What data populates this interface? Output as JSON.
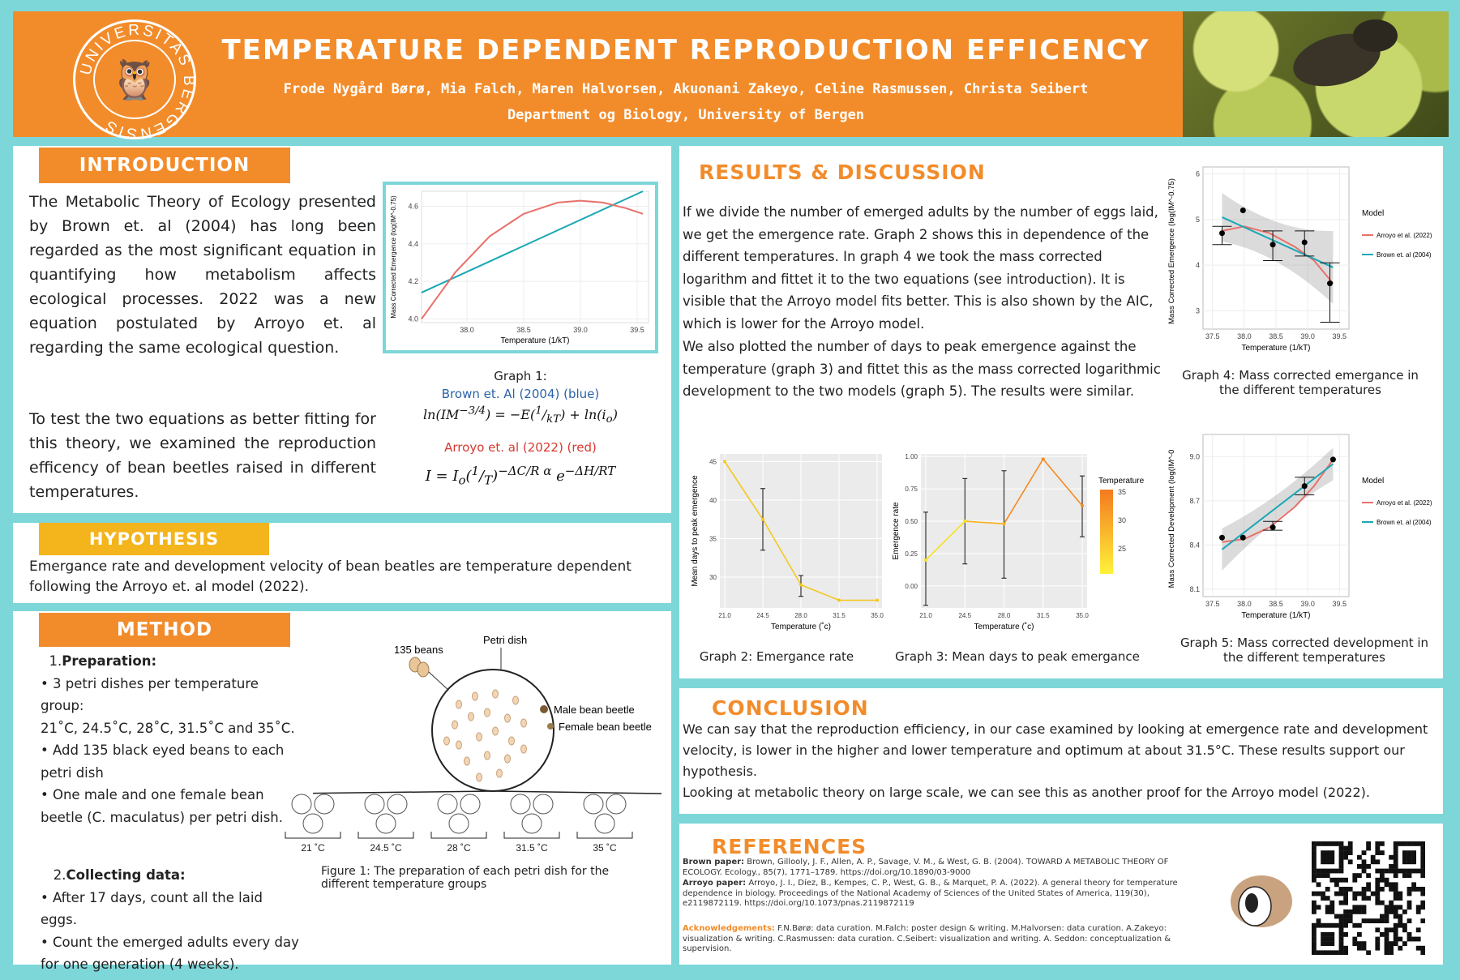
{
  "header": {
    "title": "TEMPERATURE DEPENDENT REPRODUCTION EFFICENCY",
    "authors": "Frode Nygård Børø, Mia Falch, Maren Halvorsen, Akuonani Zakeyo, Celine Rasmussen, Christa Seibert",
    "department": "Department og Biology, University of Bergen",
    "seal_text": "UNIVERSITAS BERGENSIS"
  },
  "introduction": {
    "label": "INTRODUCTION",
    "p1": "The Metabolic Theory of Ecology presented by Brown et. al (2004) has long been regarded as the most significant equation in quantifying how metabolism affects ecological processes. 2022 was a new equation postulated by Arroyo et. al regarding the same ecological question.",
    "p2": "To test the two equations as better fitting for this theory, we examined the reproduction efficency of bean beetles raised in different temperatures.",
    "graph1_caption": "Graph 1:",
    "brown_label": "Brown et. Al (2004) (blue)",
    "brown_eq": "ln(IM^-3/4) = -E(1/kT) + ln(i_o)",
    "arroyo_label": "Arroyo et. al (2022) (red)",
    "arroyo_eq": "I = I_o(1/T)^(-ΔC/R α) e^(-ΔH/RT)"
  },
  "hypothesis": {
    "label": "HYPOTHESIS",
    "text": "Emergance rate and development velocity of bean beatles are temperature dependent following the Arroyo et. al model (2022)."
  },
  "method": {
    "label": "METHOD",
    "step1_num": "1.",
    "step1_title": "Preparation:",
    "step1_items": [
      "• 3 petri dishes per temperature group:",
      "21˚C, 24.5˚C, 28˚C, 31.5˚C and 35˚C.",
      "• Add 135 black eyed beans to each petri dish",
      "• One male and one female bean beetle (C. maculatus) per petri dish."
    ],
    "step2_num": "2.",
    "step2_title": "Collecting data:",
    "step2_items": [
      "• After 17 days, count all the laid eggs.",
      "• Count the emerged adults every day for one generation (4 weeks)."
    ],
    "fig_beans": "135 beans",
    "fig_petri": "Petri dish",
    "fig_male": "Male bean beetle",
    "fig_female": "Female bean beetle",
    "fig_temps": [
      "21 ˚C",
      "24.5 ˚C",
      "28 ˚C",
      "31.5 ˚C",
      "35 ˚C"
    ],
    "fig_caption": "Figure 1: The preparation of each petri dish for the different temperature groups"
  },
  "results": {
    "label": "RESULTS & DISCUSSION",
    "text1": "If we divide the number of emerged adults by the number of eggs laid, we get the emergence rate. Graph 2 shows this in dependence of the different temperatures. In graph 4 we took the mass corrected logarithm and fittet it to the two equations (see introduction). It is visible that the Arroyo model fits better. This is also shown by the AIC, which is lower for the Arroyo model.",
    "text2": "We also plotted the number of days to peak emergence against the temperature (graph 3) and fittet this as the mass corrected logarithmic development to the two models (graph 5). The results were similar.",
    "graph2_caption": "Graph 2: Emergance rate",
    "graph3_caption": "Graph 3: Mean days to peak emergance",
    "graph4_caption": "Graph 4: Mass corrected emergance in the different temperatures",
    "graph5_caption": "Graph 5:  Mass corrected development in the different temperatures"
  },
  "conclusion": {
    "label": "CONCLUSION",
    "text1": "We can say that the reproduction efficiency, in our case examined by looking at emergence rate and development velocity, is lower in the higher and lower temperature and optimum at about 31.5°C. These results support our hypothesis.",
    "text2": "Looking at metabolic theory on large scale, we can see this as another proof for the Arroyo model (2022)."
  },
  "references": {
    "label": "REFERENCES",
    "brown_lead": "Brown paper:",
    "brown": "Brown, Gillooly, J. F., Allen, A. P., Savage, V. M., & West, G. B. (2004). TOWARD A METABOLIC THEORY OF ECOLOGY. Ecology., 85(7), 1771–1789. https://doi.org/10.1890/03-9000",
    "arroyo_lead": "Arroyo paper:",
    "arroyo": "Arroyo, J. I., Díez, B., Kempes, C. P., West, G. B., & Marquet, P. A. (2022). A general theory for temperature dependence in biology. Proceedings of the National Academy of Sciences of the United States of America, 119(30), e2119872119. https://doi.org/10.1073/pnas.2119872119",
    "ack_lead": "Acknowledgements:",
    "ack": "F.N.Børø: data curation. M.Falch: poster design & writing. M.Halvorsen: data curation. A.Zakeyo: visualization & writing. C.Rasmussen: data curation. C.Seibert: visualization and writing. A. Seddon: conceptualization & supervision."
  },
  "chart_data": [
    {
      "type": "line",
      "name": "Graph 1",
      "xlabel": "Temperature (1/kT)",
      "ylabel": "Mass Corrected Emergence (log(IM^-0.75)",
      "xticks": [
        "38.0",
        "38.5",
        "39.0",
        "39.5"
      ],
      "yticks": [
        "4.0",
        "4.2",
        "4.4",
        "4.6"
      ],
      "xlim": [
        37.6,
        39.6
      ],
      "ylim": [
        3.98,
        4.68
      ],
      "series": [
        {
          "name": "Brown et. Al (2004)",
          "color": "#1aa7b5",
          "x": [
            37.6,
            39.55
          ],
          "y": [
            4.14,
            4.68
          ]
        },
        {
          "name": "Arroyo et. al (2022)",
          "color": "#e8716b",
          "x": [
            37.6,
            37.9,
            38.2,
            38.5,
            38.8,
            39.0,
            39.2,
            39.4,
            39.55
          ],
          "y": [
            4.0,
            4.25,
            4.44,
            4.56,
            4.62,
            4.63,
            4.62,
            4.59,
            4.56
          ]
        }
      ]
    },
    {
      "type": "line",
      "name": "Graph 2",
      "xlabel": "Temperature (˚c)",
      "ylabel": "Mean days to peak emergence",
      "categories": [
        "21.0",
        "24.5",
        "28.0",
        "31.5",
        "35.0"
      ],
      "yticks": [
        "30",
        "35",
        "40",
        "45"
      ],
      "ylim": [
        26,
        46
      ],
      "values": [
        45,
        37.5,
        29,
        27,
        27
      ],
      "err_low": [
        45,
        33.5,
        27.5,
        27,
        27
      ],
      "err_high": [
        45,
        41.5,
        30.2,
        27,
        27
      ]
    },
    {
      "type": "line",
      "name": "Graph 3",
      "xlabel": "Temperature (˚c)",
      "ylabel": "Emergence rate",
      "categories": [
        "21.0",
        "24.5",
        "28.0",
        "31.5",
        "35.0"
      ],
      "yticks": [
        "0.00",
        "0.25",
        "0.50",
        "0.75",
        "1.00"
      ],
      "ylim": [
        -0.17,
        1.02
      ],
      "values": [
        0.2,
        0.5,
        0.48,
        0.98,
        0.62
      ],
      "err_low": [
        -0.15,
        0.17,
        0.06,
        0.98,
        0.38
      ],
      "err_high": [
        0.57,
        0.83,
        0.89,
        0.98,
        0.85
      ],
      "legend_title": "Temperature",
      "legend_ticks": [
        "35",
        "30",
        "25"
      ]
    },
    {
      "type": "scatter",
      "name": "Graph 4",
      "xlabel": "Temperature (1/kT)",
      "ylabel": "Mass Corrected Emergence (log(IM^-0.75)",
      "xticks": [
        "37.5",
        "38.0",
        "38.5",
        "39.0",
        "39.5"
      ],
      "yticks": [
        "3",
        "4",
        "5",
        "6"
      ],
      "xlim": [
        37.35,
        39.65
      ],
      "ylim": [
        2.6,
        6.15
      ],
      "points": [
        {
          "x": 37.65,
          "y": 4.7,
          "lo": 4.45,
          "hi": 4.85
        },
        {
          "x": 37.98,
          "y": 5.2,
          "lo": 5.2,
          "hi": 5.2
        },
        {
          "x": 38.45,
          "y": 4.45,
          "lo": 4.1,
          "hi": 4.75
        },
        {
          "x": 38.95,
          "y": 4.5,
          "lo": 4.2,
          "hi": 4.75
        },
        {
          "x": 39.35,
          "y": 3.6,
          "lo": 2.75,
          "hi": 4.05
        }
      ],
      "legend_title": "Model",
      "series": [
        {
          "name": "Arroyo et al. (2022)",
          "color": "#e8716b",
          "x": [
            37.65,
            38.0,
            38.4,
            38.8,
            39.1,
            39.4
          ],
          "y": [
            4.75,
            4.85,
            4.7,
            4.4,
            4.1,
            3.6
          ]
        },
        {
          "name": "Brown et. al (2004)",
          "color": "#1aa7b5",
          "x": [
            37.65,
            39.4
          ],
          "y": [
            5.05,
            3.95
          ]
        }
      ]
    },
    {
      "type": "scatter",
      "name": "Graph 5",
      "xlabel": "Temperature (1/kT)",
      "ylabel": "Mass Corrected Development (log(IM^-0",
      "xticks": [
        "37.5",
        "38.0",
        "38.5",
        "39.0",
        "39.5"
      ],
      "yticks": [
        "8.1",
        "8.4",
        "8.7",
        "9.0"
      ],
      "xlim": [
        37.35,
        39.65
      ],
      "ylim": [
        8.05,
        9.15
      ],
      "points": [
        {
          "x": 37.65,
          "y": 8.45,
          "lo": 8.45,
          "hi": 8.45
        },
        {
          "x": 37.98,
          "y": 8.45,
          "lo": 8.45,
          "hi": 8.45
        },
        {
          "x": 38.45,
          "y": 8.52,
          "lo": 8.5,
          "hi": 8.56
        },
        {
          "x": 38.95,
          "y": 8.8,
          "lo": 8.74,
          "hi": 8.86
        },
        {
          "x": 39.4,
          "y": 8.98,
          "lo": 8.98,
          "hi": 8.98
        }
      ],
      "legend_title": "Model",
      "series": [
        {
          "name": "Arroyo et al. (2022)",
          "color": "#e8716b",
          "x": [
            37.65,
            38.0,
            38.4,
            38.8,
            39.1,
            39.4
          ],
          "y": [
            8.42,
            8.44,
            8.52,
            8.66,
            8.8,
            8.98
          ]
        },
        {
          "name": "Brown et. al (2004)",
          "color": "#1aa7b5",
          "x": [
            37.65,
            39.4
          ],
          "y": [
            8.37,
            8.95
          ]
        }
      ]
    }
  ]
}
